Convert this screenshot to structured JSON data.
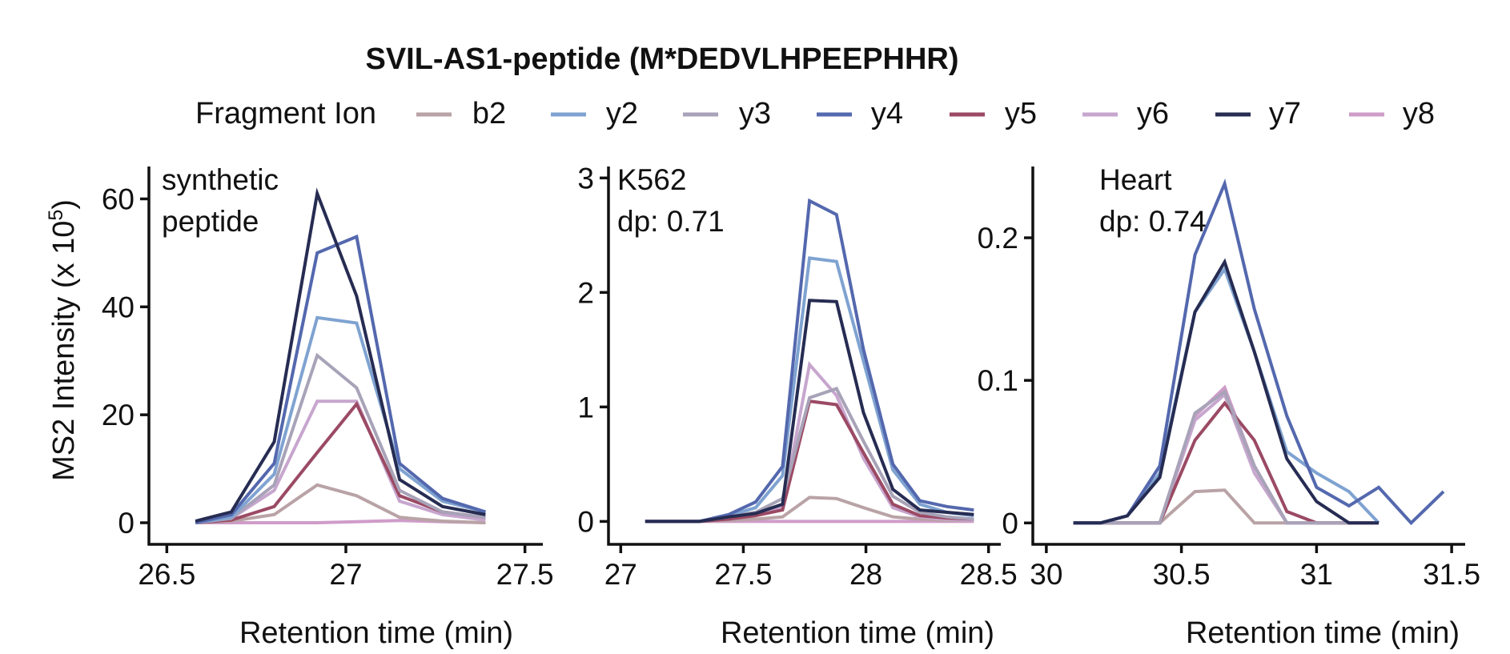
{
  "title": "SVIL-AS1-peptide (M*DEDVLHPEEPHHR)",
  "legend": {
    "title": "Fragment Ion",
    "placement": "top",
    "items": [
      {
        "label": "b2",
        "color": "#b9a3a6"
      },
      {
        "label": "y2",
        "color": "#7fa3d1"
      },
      {
        "label": "y3",
        "color": "#a8a3b8"
      },
      {
        "label": "y4",
        "color": "#5468ae"
      },
      {
        "label": "y5",
        "color": "#9b4a64"
      },
      {
        "label": "y6",
        "color": "#c7a6ce"
      },
      {
        "label": "y7",
        "color": "#262c52"
      },
      {
        "label": "y8",
        "color": "#cf9cc9"
      }
    ]
  },
  "ylabel_main": "MS2 Intensity (x 10",
  "ylabel_exp": "5",
  "ylabel_close": ")",
  "chart_data": [
    {
      "type": "line",
      "label_lines": [
        "synthetic",
        "peptide"
      ],
      "xlabel": "Retention time (min)",
      "xlim": [
        26.45,
        27.55
      ],
      "xticks": [
        26.5,
        27,
        27.5
      ],
      "xtick_labels": [
        "26.5",
        "27",
        "27.5"
      ],
      "ylim": [
        -4,
        66
      ],
      "yticks": [
        0,
        20,
        40,
        60
      ],
      "ytick_labels": [
        "0",
        "20",
        "40",
        "60"
      ],
      "series": [
        {
          "name": "b2",
          "x": [
            26.58,
            26.68,
            26.8,
            26.92,
            27.03,
            27.15,
            27.27,
            27.39
          ],
          "values": [
            0,
            0.3,
            1.5,
            7,
            5,
            1,
            0.3,
            0
          ]
        },
        {
          "name": "y2",
          "x": [
            26.58,
            26.68,
            26.8,
            26.92,
            27.03,
            27.15,
            27.27,
            27.39
          ],
          "values": [
            0,
            1,
            9,
            38,
            37,
            10,
            4,
            2
          ]
        },
        {
          "name": "y3",
          "x": [
            26.58,
            26.68,
            26.8,
            26.92,
            27.03,
            27.15,
            27.27,
            27.39
          ],
          "values": [
            0,
            0.8,
            7,
            31,
            25,
            6,
            2,
            1
          ]
        },
        {
          "name": "y4",
          "x": [
            26.58,
            26.68,
            26.8,
            26.92,
            27.03,
            27.15,
            27.27,
            27.39
          ],
          "values": [
            0,
            1.5,
            11,
            50,
            53,
            11,
            4.5,
            2
          ]
        },
        {
          "name": "y5",
          "x": [
            26.58,
            26.68,
            26.8,
            26.92,
            27.03,
            27.15,
            27.27,
            27.39
          ],
          "values": [
            0,
            0.5,
            3,
            13,
            22,
            5,
            2,
            1
          ]
        },
        {
          "name": "y6",
          "x": [
            26.58,
            26.68,
            26.8,
            26.92,
            27.03,
            27.15,
            27.27,
            27.39
          ],
          "values": [
            0,
            0.8,
            6,
            22.5,
            22.5,
            4,
            1.5,
            0.5
          ]
        },
        {
          "name": "y7",
          "x": [
            26.58,
            26.68,
            26.8,
            26.92,
            27.03,
            27.15,
            27.27,
            27.39
          ],
          "values": [
            0.3,
            2,
            15,
            61,
            42,
            8,
            3,
            1.5
          ]
        },
        {
          "name": "y8",
          "x": [
            26.58,
            26.68,
            26.8,
            26.92,
            27.03,
            27.15,
            27.27,
            27.39
          ],
          "values": [
            0,
            0,
            0,
            0,
            0.2,
            0.4,
            0.2,
            0
          ]
        }
      ]
    },
    {
      "type": "line",
      "label_lines": [
        "K562",
        "dp: 0.71"
      ],
      "xlabel": "Retention time (min)",
      "xlim": [
        26.95,
        28.55
      ],
      "xticks": [
        27,
        27.5,
        28,
        28.5
      ],
      "xtick_labels": [
        "27",
        "27.5",
        "28",
        "28.5"
      ],
      "ylim": [
        -0.2,
        3.1
      ],
      "yticks": [
        0,
        1,
        2,
        3
      ],
      "ytick_labels": [
        "0",
        "1",
        "2",
        "3"
      ],
      "series": [
        {
          "name": "b2",
          "x": [
            27.1,
            27.32,
            27.44,
            27.55,
            27.66,
            27.77,
            27.88,
            27.99,
            28.11,
            28.22,
            28.33,
            28.44
          ],
          "values": [
            0,
            0,
            0.01,
            0.02,
            0.04,
            0.21,
            0.2,
            0.12,
            0.04,
            0.02,
            0.01,
            0.01
          ]
        },
        {
          "name": "y2",
          "x": [
            27.1,
            27.32,
            27.44,
            27.55,
            27.66,
            27.77,
            27.88,
            27.99,
            28.11,
            28.22,
            28.33,
            28.44
          ],
          "values": [
            0,
            0,
            0.05,
            0.12,
            0.4,
            2.3,
            2.27,
            1.4,
            0.45,
            0.15,
            0.08,
            0.05
          ]
        },
        {
          "name": "y3",
          "x": [
            27.1,
            27.32,
            27.44,
            27.55,
            27.66,
            27.77,
            27.88,
            27.99,
            28.11,
            28.22,
            28.33,
            28.44
          ],
          "values": [
            0,
            0,
            0.04,
            0.08,
            0.2,
            1.08,
            1.16,
            0.7,
            0.22,
            0.08,
            0.04,
            0.02
          ]
        },
        {
          "name": "y4",
          "x": [
            27.1,
            27.32,
            27.44,
            27.55,
            27.66,
            27.77,
            27.88,
            27.99,
            28.11,
            28.22,
            28.33,
            28.44
          ],
          "values": [
            0,
            0,
            0.06,
            0.17,
            0.48,
            2.8,
            2.68,
            1.5,
            0.5,
            0.18,
            0.13,
            0.1
          ]
        },
        {
          "name": "y5",
          "x": [
            27.1,
            27.32,
            27.44,
            27.55,
            27.66,
            27.77,
            27.88,
            27.99,
            28.11,
            28.22,
            28.33,
            28.44
          ],
          "values": [
            0,
            0,
            0.02,
            0.05,
            0.1,
            1.05,
            1.02,
            0.6,
            0.15,
            0.05,
            0.03,
            0.02
          ]
        },
        {
          "name": "y6",
          "x": [
            27.1,
            27.32,
            27.44,
            27.55,
            27.66,
            27.77,
            27.88,
            27.99,
            28.11,
            28.22,
            28.33,
            28.44
          ],
          "values": [
            0,
            0,
            0.02,
            0.05,
            0.12,
            1.37,
            1.1,
            0.55,
            0.12,
            0.04,
            0.02,
            0.01
          ]
        },
        {
          "name": "y7",
          "x": [
            27.1,
            27.32,
            27.44,
            27.55,
            27.66,
            27.77,
            27.88,
            27.99,
            28.11,
            28.22,
            28.33,
            28.44
          ],
          "values": [
            0,
            0,
            0.04,
            0.07,
            0.15,
            1.93,
            1.92,
            0.95,
            0.28,
            0.1,
            0.08,
            0.06
          ]
        },
        {
          "name": "y8",
          "x": [
            27.1,
            27.32,
            27.44,
            27.55,
            27.66,
            27.77,
            27.88,
            27.99,
            28.11,
            28.22,
            28.33,
            28.44
          ],
          "values": [
            0,
            0,
            0,
            0,
            0,
            0,
            0,
            0,
            0,
            0,
            0,
            0
          ]
        }
      ]
    },
    {
      "type": "line",
      "label_lines": [
        "Heart",
        "dp: 0.74"
      ],
      "xlabel": "Retention time (min)",
      "xlim": [
        29.95,
        31.55
      ],
      "xticks": [
        30,
        30.5,
        31,
        31.5
      ],
      "xtick_labels": [
        "30",
        "30.5",
        "31",
        "31.5"
      ],
      "ylim": [
        -0.015,
        0.25
      ],
      "yticks": [
        0,
        0.1,
        0.2
      ],
      "ytick_labels": [
        "0",
        "0.1",
        "0.2"
      ],
      "series": [
        {
          "name": "b2",
          "x": [
            30.1,
            30.2,
            30.3,
            30.42,
            30.55,
            30.66,
            30.77,
            30.89,
            31.0,
            31.12,
            31.23
          ],
          "values": [
            0,
            0,
            0,
            0,
            0.022,
            0.023,
            0,
            0,
            0,
            0,
            0
          ]
        },
        {
          "name": "y2",
          "x": [
            30.1,
            30.2,
            30.3,
            30.42,
            30.55,
            30.66,
            30.77,
            30.89,
            31.0,
            31.12,
            31.23
          ],
          "values": [
            0,
            0,
            0.005,
            0.035,
            0.148,
            0.178,
            0.12,
            0.05,
            0.035,
            0.022,
            0
          ]
        },
        {
          "name": "y3",
          "x": [
            30.1,
            30.2,
            30.3,
            30.42,
            30.55,
            30.66,
            30.77,
            30.89,
            31.0,
            31.12,
            31.23
          ],
          "values": [
            0,
            0,
            0,
            0,
            0.077,
            0.092,
            0.04,
            0,
            0,
            0,
            0
          ]
        },
        {
          "name": "y4",
          "x": [
            30.1,
            30.2,
            30.3,
            30.42,
            30.55,
            30.66,
            30.77,
            30.89,
            31.0,
            31.12,
            31.23,
            31.35,
            31.47
          ],
          "values": [
            0,
            0,
            0.005,
            0.04,
            0.188,
            0.238,
            0.15,
            0.075,
            0.025,
            0.012,
            0.025,
            0,
            0.022
          ]
        },
        {
          "name": "y5",
          "x": [
            30.1,
            30.2,
            30.3,
            30.42,
            30.55,
            30.66,
            30.77,
            30.89,
            31.0,
            31.12,
            31.23
          ],
          "values": [
            0,
            0,
            0,
            0,
            0.058,
            0.084,
            0.058,
            0.008,
            0,
            0,
            0
          ]
        },
        {
          "name": "y6",
          "x": [
            30.1,
            30.2,
            30.3,
            30.42,
            30.55,
            30.66,
            30.77,
            30.89,
            31.0,
            31.12,
            31.23
          ],
          "values": [
            0,
            0,
            0,
            0,
            0.072,
            0.09,
            0.035,
            0,
            0,
            0,
            0
          ]
        },
        {
          "name": "y7",
          "x": [
            30.1,
            30.2,
            30.3,
            30.42,
            30.55,
            30.66,
            30.77,
            30.89,
            31.0,
            31.12,
            31.23
          ],
          "values": [
            0,
            0,
            0.005,
            0.032,
            0.148,
            0.183,
            0.12,
            0.045,
            0.015,
            0,
            0
          ]
        },
        {
          "name": "y8",
          "x": [
            30.1,
            30.2,
            30.3,
            30.42,
            30.55,
            30.66,
            30.77,
            30.89,
            31.0,
            31.12,
            31.23
          ],
          "values": [
            0,
            0,
            0,
            0,
            0.075,
            0.095,
            0.04,
            0,
            0,
            0,
            0
          ]
        }
      ]
    }
  ]
}
